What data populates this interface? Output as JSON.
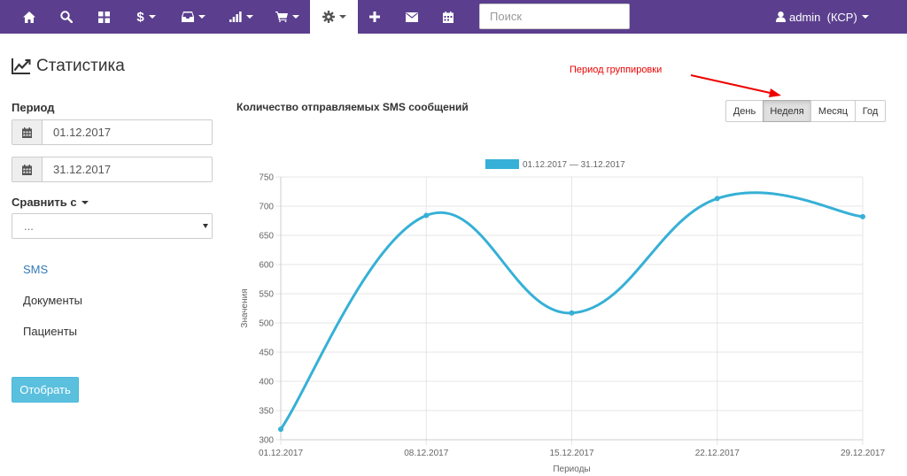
{
  "navbar": {
    "items": [
      {
        "icon": "home-icon"
      },
      {
        "icon": "search-icon"
      },
      {
        "icon": "grid-icon"
      },
      {
        "icon": "dollar-icon",
        "dropdown": true
      },
      {
        "icon": "inbox-icon",
        "dropdown": true
      },
      {
        "icon": "signal-icon",
        "dropdown": true
      },
      {
        "icon": "cart-icon",
        "dropdown": true
      },
      {
        "icon": "gear-icon",
        "dropdown": true,
        "active": true
      },
      {
        "icon": "plus-icon"
      },
      {
        "icon": "envelope-icon"
      },
      {
        "icon": "calendar-icon"
      }
    ],
    "search_placeholder": "Поиск",
    "user_label": "admin  (КСР)",
    "bg_color": "#5b3f8e"
  },
  "page": {
    "title": "Статистика"
  },
  "sidebar": {
    "period_label": "Период",
    "date_from": "01.12.2017",
    "date_to": "31.12.2017",
    "compare_label": "Сравнить с",
    "compare_value": "...",
    "links": [
      {
        "label": "SMS",
        "active": true
      },
      {
        "label": "Документы",
        "active": false
      },
      {
        "label": "Пациенты",
        "active": false
      }
    ],
    "submit_label": "Отобрать"
  },
  "chart_panel": {
    "title": "Количество отправляемых SMS сообщений",
    "annotation": "Период группировки",
    "grouping_buttons": [
      {
        "label": "День",
        "active": false
      },
      {
        "label": "Неделя",
        "active": true
      },
      {
        "label": "Месяц",
        "active": false
      },
      {
        "label": "Год",
        "active": false
      }
    ]
  },
  "chart_data": {
    "type": "line",
    "x": [
      "01.12.2017",
      "08.12.2017",
      "15.12.2017",
      "22.12.2017",
      "29.12.2017"
    ],
    "series": [
      {
        "name": "01.12.2017 — 31.12.2017",
        "values": [
          318,
          684,
          517,
          713,
          682
        ],
        "color": "#36b0d6"
      }
    ],
    "xlabel": "Периоды",
    "ylabel": "Значения",
    "ylim": [
      300,
      750
    ],
    "yticks": [
      300,
      350,
      400,
      450,
      500,
      550,
      600,
      650,
      700,
      750
    ],
    "grid": true,
    "legend": "top-center"
  }
}
